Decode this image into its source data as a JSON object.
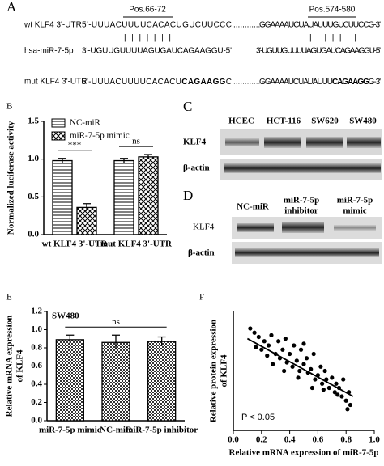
{
  "panel_a": {
    "letter": "A",
    "sites": [
      "Pos.66-72",
      "Pos.574-580"
    ],
    "pairing": "|||||||",
    "wt": {
      "label": "wt KLF4 3'-UTR",
      "left": "5'-UUUACUUUUCACACUGUCUUCCC",
      "gap": "............",
      "right": "GGAAAAUCUAUAUUUGUCUUCCG-3'"
    },
    "mir": {
      "label": "hsa-miR-7-5p",
      "left": "3'-UGUUGUUUUAGUGAUCAGAAGGU-5'",
      "right": "3'-UGUUGUUUUAGUGAUCAGAAGGU-5'"
    },
    "mut": {
      "label": "mut KLF4 3'-UTR",
      "left": [
        "5'-UUUACUUUUCACACU",
        "CAGAAGG",
        "C"
      ],
      "gap": "............",
      "right": [
        "GGAAAAUCUAUAUUU",
        "CAGAAGG",
        "G-3'"
      ]
    }
  },
  "blot_c": {
    "letter": "C",
    "lanes": [
      "HCEC",
      "HCT-116",
      "SW620",
      "SW480"
    ],
    "rows": [
      "KLF4",
      "β-actin"
    ]
  },
  "blot_d": {
    "letter": "D",
    "lanes": [
      [
        "NC-miR"
      ],
      [
        "miR-7-5p",
        "inhibitor"
      ],
      [
        "miR-7-5p",
        "mimic"
      ]
    ],
    "rows": [
      "KLF4",
      "β-actin"
    ]
  },
  "chart_data": [
    {
      "type": "bar",
      "panel": "B",
      "ylabel": "Normalized luciferase activity",
      "categories": [
        "wt KLF4 3'-UTR",
        "mut KLF4 3'-UTR"
      ],
      "series": [
        {
          "name": "NC-miR",
          "color": "#000000",
          "pattern": "horizontal",
          "values": [
            0.98,
            0.98
          ],
          "errors": [
            0.03,
            0.03
          ]
        },
        {
          "name": "miR-7-5p mimic",
          "color": "#000000",
          "pattern": "crosshatch",
          "values": [
            0.36,
            1.03
          ],
          "errors": [
            0.05,
            0.03
          ]
        }
      ],
      "ylim": [
        0,
        1.5
      ],
      "yticks": [
        {
          "value": 0,
          "label": "0.0"
        },
        0.5,
        {
          "value": 1,
          "label": "1.0"
        },
        1.5
      ],
      "legend": "upper left",
      "annotations": [
        "***",
        "ns"
      ]
    },
    {
      "type": "bar",
      "panel": "E",
      "title": "SW480",
      "ylabel": [
        "Relative mRNA expression",
        "of KLF4"
      ],
      "categories": [
        "miR-7-5p mimic",
        "NC-miR",
        "miR-7-5p inhibitor"
      ],
      "values": [
        0.89,
        0.86,
        0.87
      ],
      "errors": [
        0.05,
        0.08,
        0.05
      ],
      "color": "#000000",
      "pattern": "checker",
      "ylim": [
        0,
        1.2
      ],
      "yticks": [
        {
          "value": 0,
          "label": "0.0"
        },
        0.2,
        0.4,
        0.6,
        0.8,
        {
          "value": 1,
          "label": "1.0"
        },
        1.2
      ],
      "annotations": [
        "ns"
      ]
    },
    {
      "type": "scatter",
      "panel": "F",
      "xlabel": "Relative mRNA expression of miR-7-5p",
      "ylabel": [
        "Relative protein expression",
        "of KLF4"
      ],
      "color": "#000000",
      "x": [
        0.12,
        0.15,
        0.18,
        0.2,
        0.22,
        0.25,
        0.27,
        0.3,
        0.32,
        0.33,
        0.35,
        0.37,
        0.38,
        0.4,
        0.42,
        0.43,
        0.45,
        0.47,
        0.48,
        0.5,
        0.52,
        0.53,
        0.55,
        0.57,
        0.58,
        0.6,
        0.62,
        0.63,
        0.65,
        0.66,
        0.68,
        0.7,
        0.72,
        0.73,
        0.75,
        0.77,
        0.78,
        0.8,
        0.82,
        0.83,
        0.16,
        0.28,
        0.36,
        0.46,
        0.56,
        0.64,
        0.74,
        0.81,
        0.24,
        0.5
      ],
      "y": [
        1.2,
        1.15,
        1.1,
        0.95,
        1.05,
        1.0,
        1.12,
        0.9,
        1.05,
        0.85,
        0.95,
        1.08,
        0.8,
        0.9,
        0.75,
        1.0,
        0.82,
        0.7,
        0.95,
        0.78,
        0.85,
        0.68,
        0.72,
        0.9,
        0.6,
        0.65,
        0.75,
        0.55,
        0.7,
        0.6,
        0.5,
        0.62,
        0.45,
        0.55,
        0.5,
        0.4,
        0.6,
        0.35,
        0.45,
        0.3,
        0.98,
        0.78,
        0.7,
        0.62,
        0.5,
        0.48,
        0.42,
        0.25,
        0.88,
        1.02
      ],
      "fit": {
        "x": [
          0.1,
          0.85
        ],
        "y": [
          1.08,
          0.4
        ]
      },
      "xlim": [
        0,
        1
      ],
      "xticks": [
        {
          "value": 0,
          "label": "0.0"
        },
        0.2,
        0.4,
        0.6,
        0.8,
        {
          "value": 1,
          "label": "1.0"
        }
      ],
      "ylim": [
        0,
        1.4
      ],
      "annotations": [
        "P < 0.05"
      ]
    }
  ]
}
